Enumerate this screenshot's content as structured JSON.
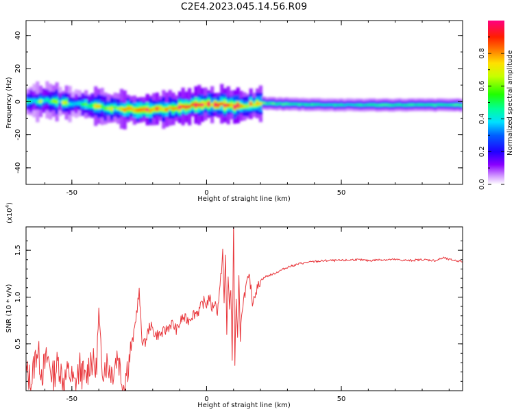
{
  "title": "C2E4.2023.045.14.56.R09",
  "chart_data": [
    {
      "type": "heatmap",
      "xlabel": "Height of straight line (km)",
      "ylabel": "Frequency (Hz)",
      "xlim": [
        -67,
        95
      ],
      "ylim": [
        -50,
        49
      ],
      "xticks": [
        -50,
        0,
        50
      ],
      "yticks": [
        -40,
        -20,
        0,
        20,
        40
      ],
      "colorbar": {
        "label": "Normalized spectral amplitude",
        "range": [
          0,
          1
        ],
        "ticks": [
          0.0,
          0.2,
          0.4,
          0.6,
          0.8
        ],
        "tick_labels": [
          "0.0",
          "0.2",
          "0.4",
          "0.6",
          "0.8"
        ]
      },
      "ridge": {
        "x": [
          -67,
          -60,
          -55,
          -50,
          -45,
          -40,
          -35,
          -30,
          -25,
          -20,
          -15,
          -10,
          -5,
          0,
          5,
          10,
          15,
          20,
          30,
          50,
          70,
          95
        ],
        "frequency": [
          0,
          1,
          0,
          -1,
          -2,
          -3,
          -4,
          -4.5,
          -5,
          -4.5,
          -4,
          -3,
          -2,
          -1,
          -2,
          -3,
          -2,
          -1,
          -1.5,
          -2,
          -2,
          -2
        ],
        "amplitude": [
          0.5,
          0.5,
          0.55,
          0.55,
          0.55,
          0.6,
          0.7,
          0.8,
          0.85,
          0.9,
          0.9,
          0.95,
          0.95,
          0.9,
          0.95,
          0.95,
          0.75,
          0.6,
          0.55,
          0.5,
          0.55,
          0.55
        ]
      }
    },
    {
      "type": "line",
      "xlabel": "Height of straight line (km)",
      "ylabel": "SNR (10 * v/v)",
      "y_multiplier": "(x10",
      "y_multiplier_exp": "4",
      "y_multiplier_close": ")",
      "xlim": [
        -67,
        95
      ],
      "ylim": [
        0,
        1.75
      ],
      "xticks": [
        -50,
        0,
        50
      ],
      "yticks": [
        0.5,
        1.0,
        1.5
      ],
      "ytick_labels": [
        "0.5",
        "1.0",
        "1.5"
      ],
      "line_color": "#e8363b",
      "x": [
        -67,
        -65,
        -63,
        -61,
        -59,
        -57,
        -55,
        -53,
        -51,
        -49,
        -47,
        -45,
        -43,
        -41,
        -40,
        -39,
        -37,
        -35,
        -33,
        -31,
        -29,
        -27,
        -25.5,
        -25,
        -24,
        -23,
        -21,
        -19,
        -17,
        -15,
        -13,
        -11,
        -9,
        -7,
        -5,
        -3,
        -1,
        0,
        1,
        2,
        3,
        4,
        5,
        6,
        6.5,
        7,
        7.5,
        8,
        8.5,
        9,
        9.5,
        10,
        10.5,
        11,
        11.5,
        12,
        12.5,
        13,
        14,
        15,
        16,
        17,
        18,
        19,
        20,
        22,
        25,
        30,
        35,
        40,
        45,
        50,
        55,
        60,
        65,
        70,
        75,
        80,
        85,
        88,
        90,
        95
      ],
      "y": [
        0.2,
        0.1,
        0.45,
        0.2,
        0.35,
        0.15,
        0.3,
        0.1,
        0.2,
        0.05,
        0.25,
        0.1,
        0.35,
        0.2,
        0.8,
        0.25,
        0.3,
        0.2,
        0.4,
        0.05,
        0.3,
        0.6,
        0.95,
        1.05,
        0.55,
        0.5,
        0.7,
        0.6,
        0.6,
        0.65,
        0.72,
        0.65,
        0.78,
        0.75,
        0.82,
        0.85,
        0.95,
        0.92,
        1.0,
        0.88,
        0.95,
        0.85,
        1.1,
        1.5,
        0.9,
        1.45,
        0.6,
        1.25,
        0.85,
        1.1,
        0.35,
        1.75,
        0.3,
        1.0,
        0.55,
        1.2,
        0.5,
        0.85,
        1.02,
        1.15,
        1.2,
        0.95,
        1.05,
        1.1,
        1.18,
        1.22,
        1.25,
        1.32,
        1.36,
        1.38,
        1.39,
        1.39,
        1.4,
        1.39,
        1.4,
        1.4,
        1.39,
        1.4,
        1.39,
        1.42,
        1.4,
        1.38
      ]
    }
  ]
}
